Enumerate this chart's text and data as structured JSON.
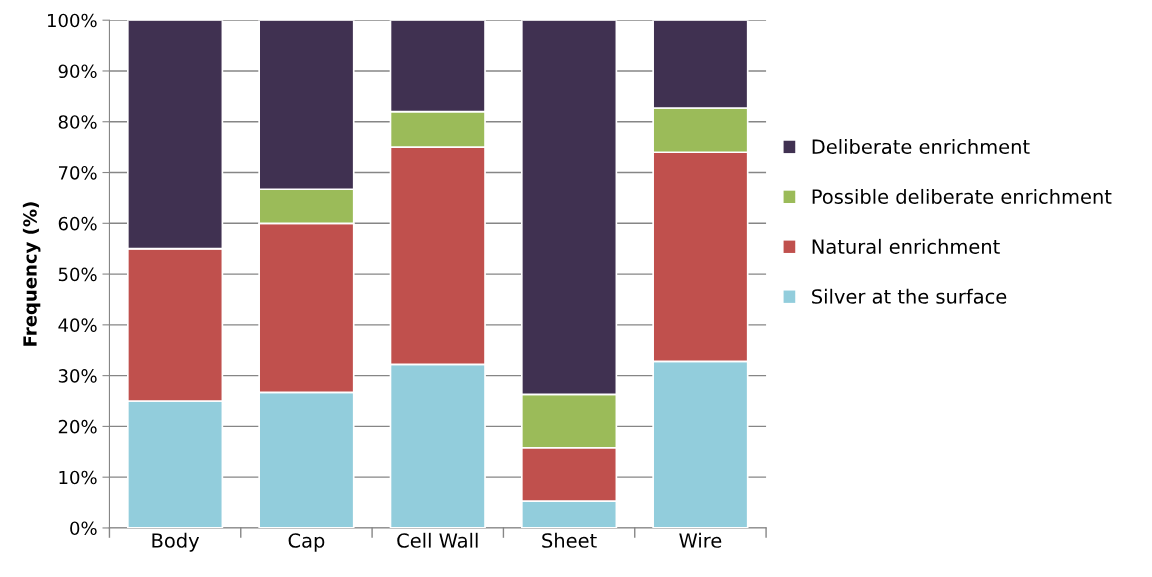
{
  "chart_data": {
    "type": "bar",
    "stacked": true,
    "ylabel": "Frequency (%)",
    "categories": [
      "Body",
      "Cap",
      "Cell Wall",
      "Sheet",
      "Wire"
    ],
    "series": [
      {
        "name": "Silver at the surface",
        "color": "#92cddc",
        "values": [
          25,
          26.7,
          32.2,
          5.3,
          32.8
        ]
      },
      {
        "name": "Natural enrichment",
        "color": "#c0504d",
        "values": [
          30,
          33.3,
          42.8,
          10.5,
          41.2
        ]
      },
      {
        "name": "Possible deliberate enrichment",
        "color": "#9bbb59",
        "values": [
          0,
          6.7,
          7,
          10.5,
          8.7
        ]
      },
      {
        "name": "Deliberate enrichment",
        "color": "#403151",
        "values": [
          45,
          33.3,
          18,
          73.7,
          17.3
        ]
      }
    ],
    "ylim": [
      0,
      100
    ],
    "yticks": [
      {
        "value": 0,
        "label": "0%"
      },
      {
        "value": 10,
        "label": "10%"
      },
      {
        "value": 20,
        "label": "20%"
      },
      {
        "value": 30,
        "label": "30%"
      },
      {
        "value": 40,
        "label": "40%"
      },
      {
        "value": 50,
        "label": "50%"
      },
      {
        "value": 60,
        "label": "60%"
      },
      {
        "value": 70,
        "label": "70%"
      },
      {
        "value": 80,
        "label": "80%"
      },
      {
        "value": 90,
        "label": "90%"
      },
      {
        "value": 100,
        "label": "100%"
      }
    ],
    "grid": "y",
    "legend": "right"
  }
}
